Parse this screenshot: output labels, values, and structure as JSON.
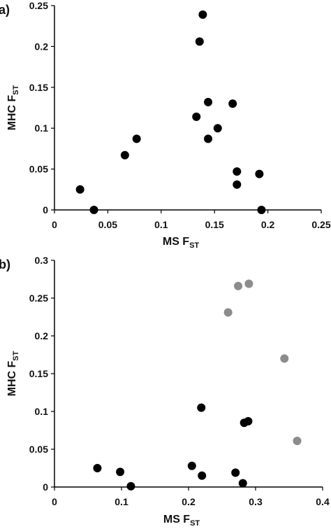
{
  "chart_data": [
    {
      "type": "scatter",
      "panel_label": "a)",
      "xlabel": "MS F",
      "xlabel_sub": "ST",
      "ylabel": "MHC F",
      "ylabel_sub": "ST",
      "xlim": [
        0,
        0.25
      ],
      "ylim": [
        0,
        0.25
      ],
      "x_ticks": [
        "0",
        "0.05",
        "0.1",
        "0.15",
        "0.2",
        "0.25"
      ],
      "y_ticks": [
        "0",
        "0.05",
        "0.1",
        "0.15",
        "0.2",
        "0.25"
      ],
      "grid": false,
      "series": [
        {
          "color": "#000000",
          "points": [
            [
              0.024,
              0.025
            ],
            [
              0.037,
              0.0
            ],
            [
              0.066,
              0.067
            ],
            [
              0.077,
              0.087
            ],
            [
              0.133,
              0.114
            ],
            [
              0.136,
              0.206
            ],
            [
              0.139,
              0.239
            ],
            [
              0.144,
              0.132
            ],
            [
              0.144,
              0.087
            ],
            [
              0.153,
              0.1
            ],
            [
              0.167,
              0.13
            ],
            [
              0.171,
              0.047
            ],
            [
              0.171,
              0.031
            ],
            [
              0.192,
              0.044
            ],
            [
              0.194,
              0.0
            ]
          ]
        }
      ]
    },
    {
      "type": "scatter",
      "panel_label": "b)",
      "xlabel": "MS F",
      "xlabel_sub": "ST",
      "ylabel": "MHC F",
      "ylabel_sub": "ST",
      "xlim": [
        0,
        0.4
      ],
      "ylim": [
        0,
        0.3
      ],
      "x_ticks": [
        "0",
        "0.1",
        "0.2",
        "0.3",
        "0.4"
      ],
      "y_ticks": [
        "0",
        "0.05",
        "0.1",
        "0.15",
        "0.2",
        "0.25",
        "0.3"
      ],
      "grid": false,
      "series": [
        {
          "color": "#000000",
          "points": [
            [
              0.064,
              0.025
            ],
            [
              0.098,
              0.02
            ],
            [
              0.114,
              0.001
            ],
            [
              0.205,
              0.028
            ],
            [
              0.219,
              0.105
            ],
            [
              0.22,
              0.015
            ],
            [
              0.27,
              0.019
            ],
            [
              0.281,
              0.005
            ],
            [
              0.283,
              0.085
            ],
            [
              0.289,
              0.087
            ]
          ]
        },
        {
          "color": "#8c8c8c",
          "points": [
            [
              0.259,
              0.231
            ],
            [
              0.274,
              0.266
            ],
            [
              0.29,
              0.269
            ],
            [
              0.343,
              0.17
            ],
            [
              0.362,
              0.061
            ]
          ]
        }
      ]
    }
  ]
}
